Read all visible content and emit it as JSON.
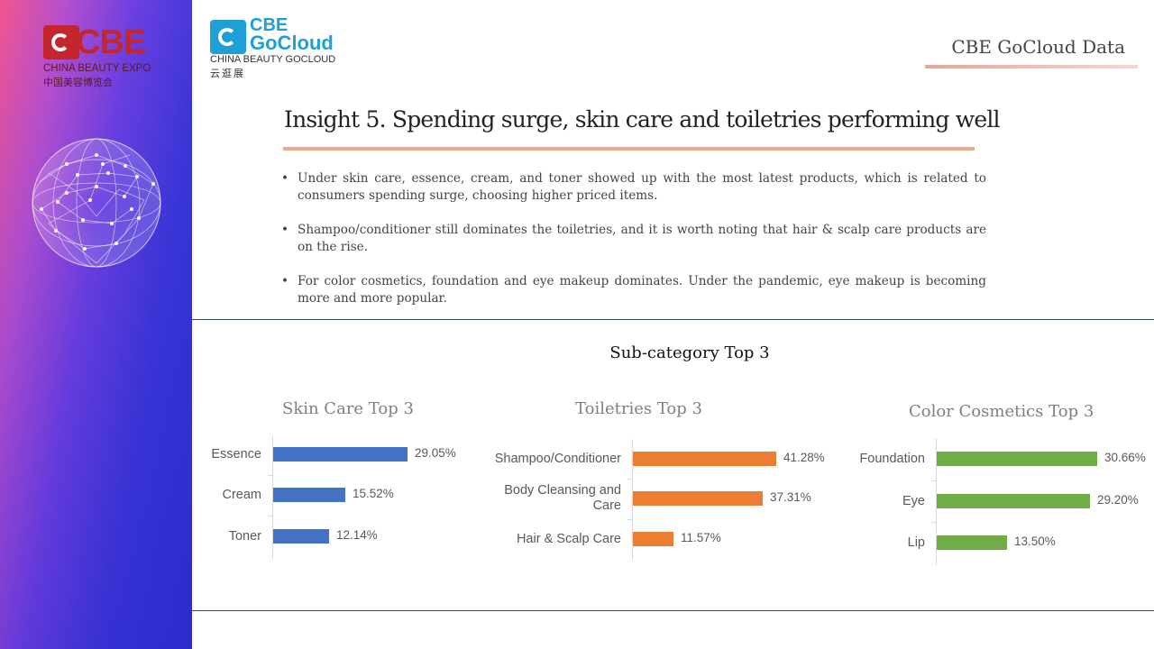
{
  "sidebar": {
    "logo_text": "CBE",
    "logo_sub": "CHINA BEAUTY EXPO",
    "logo_cn": "中国美容博览会"
  },
  "gocloud_logo": {
    "line1": "CBE",
    "line2": "GoCloud",
    "sub": "CHINA BEAUTY GOCLOUD",
    "cn": "云逛展"
  },
  "header": {
    "brand": "CBE GoCloud Data",
    "title": "Insight 5. Spending surge, skin care and toiletries performing well"
  },
  "bullets": [
    "Under skin care, essence, cream, and toner showed up with the most latest products, which is related to consumers spending surge, choosing higher priced items.",
    "Shampoo/conditioner still dominates the toiletries, and it is worth noting that hair & scalp care products are on the rise.",
    "For color cosmetics, foundation and eye makeup dominates.  Under the pandemic, eye makeup is becoming more and more popular."
  ],
  "section_title": "Sub-category Top 3",
  "colors": {
    "skin": "#4472c4",
    "toiletries": "#ed7d31",
    "color_cosmetics": "#70ad47"
  },
  "chart_data": [
    {
      "type": "bar",
      "orientation": "horizontal",
      "title": "Skin Care Top 3",
      "categories": [
        "Essence",
        "Cream",
        "Toner"
      ],
      "values": [
        29.05,
        15.52,
        12.14
      ],
      "labels": [
        "29.05%",
        "15.52%",
        "12.14%"
      ],
      "xlim": [
        0,
        30
      ],
      "grid": false,
      "color": "#4472c4"
    },
    {
      "type": "bar",
      "orientation": "horizontal",
      "title": "Toiletries Top 3",
      "categories": [
        "Shampoo/Conditioner",
        "Body Cleansing and Care",
        "Hair & Scalp Care"
      ],
      "values": [
        41.28,
        37.31,
        11.57
      ],
      "labels": [
        "41.28%",
        "37.31%",
        "11.57%"
      ],
      "xlim": [
        0,
        41.28
      ],
      "grid": false,
      "color": "#ed7d31"
    },
    {
      "type": "bar",
      "orientation": "horizontal",
      "title": "Color Cosmetics Top 3",
      "categories": [
        "Foundation",
        "Eye",
        "Lip"
      ],
      "values": [
        30.66,
        29.2,
        13.5
      ],
      "labels": [
        "30.66%",
        "29.20%",
        "13.50%"
      ],
      "xlim": [
        0,
        30.66
      ],
      "grid": false,
      "color": "#70ad47"
    }
  ]
}
